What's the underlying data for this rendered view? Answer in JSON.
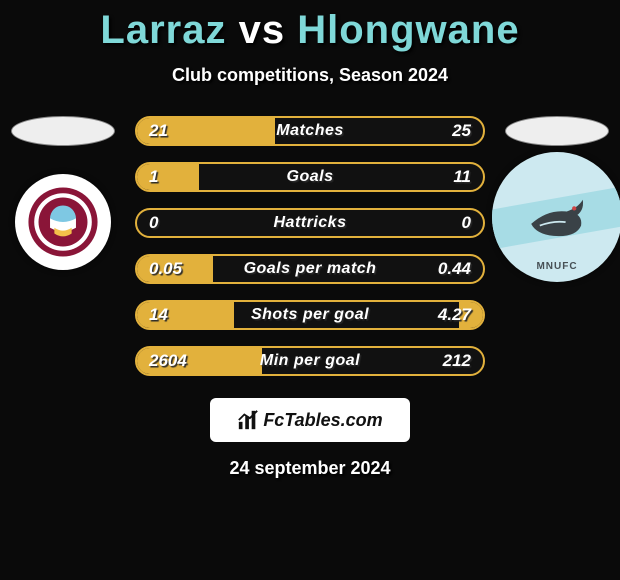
{
  "title": {
    "player1": "Larraz",
    "vs": "vs",
    "player2": "Hlongwane",
    "p1_color": "#7fd8d8",
    "p2_color": "#7fd8d8"
  },
  "subtitle": "Club competitions, Season 2024",
  "team_left": {
    "name": "colorado-rapids",
    "crest_bg": "#ffffff",
    "crest_primary": "#8a1538",
    "crest_accent": "#7ec8e3"
  },
  "team_right": {
    "name": "minnesota-united",
    "crest_bg": "#cde9f0",
    "crest_stripe": "#a7dce5",
    "crest_dark": "#3a4247",
    "crest_text": "MNUFC"
  },
  "accent_color": "#e2b13c",
  "fill_color": "#e2b13c",
  "stats": [
    {
      "label": "Matches",
      "left_val": "21",
      "right_val": "25",
      "left_pct": 40,
      "right_pct": 0
    },
    {
      "label": "Goals",
      "left_val": "1",
      "right_val": "11",
      "left_pct": 18,
      "right_pct": 0
    },
    {
      "label": "Hattricks",
      "left_val": "0",
      "right_val": "0",
      "left_pct": 0,
      "right_pct": 0
    },
    {
      "label": "Goals per match",
      "left_val": "0.05",
      "right_val": "0.44",
      "left_pct": 22,
      "right_pct": 0
    },
    {
      "label": "Shots per goal",
      "left_val": "14",
      "right_val": "4.27",
      "left_pct": 28,
      "right_pct": 7
    },
    {
      "label": "Min per goal",
      "left_val": "2604",
      "right_val": "212",
      "left_pct": 36,
      "right_pct": 0
    }
  ],
  "footer": {
    "site": "FcTables.com",
    "date": "24 september 2024"
  }
}
